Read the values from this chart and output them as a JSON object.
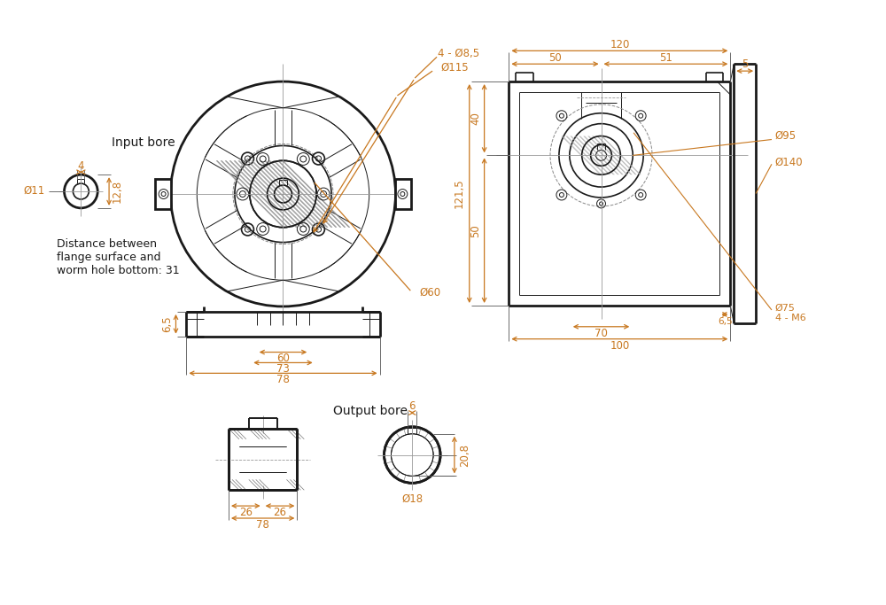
{
  "bg_color": "#ffffff",
  "line_color": "#1a1a1a",
  "dim_color": "#c87820",
  "center_color": "#999999",
  "annotations": {
    "input_bore_label": "Input bore",
    "output_bore_label": "Output bore",
    "distance_label": "Distance between\nflange surface and\nworm hole bottom: 31",
    "dim_4_phi85": "4 - Ø8,5",
    "dim_phi115": "Ø115",
    "dim_phi60": "Ø60",
    "dim_4": "4",
    "dim_phi11": "Ø11",
    "dim_128": "12,8",
    "dim_65": "6,5",
    "dim_60": "60",
    "dim_73": "73",
    "dim_78_top": "78",
    "dim_120": "120",
    "dim_50": "50",
    "dim_51": "51",
    "dim_1215": "121,5",
    "dim_40": "40",
    "dim_50b": "50",
    "dim_100": "100",
    "dim_70": "70",
    "dim_65b": "6,5",
    "dim_phi95": "Ø95",
    "dim_phi140": "Ø140",
    "dim_5": "5",
    "dim_phi75": "Ø75",
    "dim_4m6": "4 - M6",
    "dim_6": "6",
    "dim_phi18": "Ø18",
    "dim_208": "20,8",
    "dim_26a": "26",
    "dim_26b": "26",
    "dim_78b": "78"
  }
}
